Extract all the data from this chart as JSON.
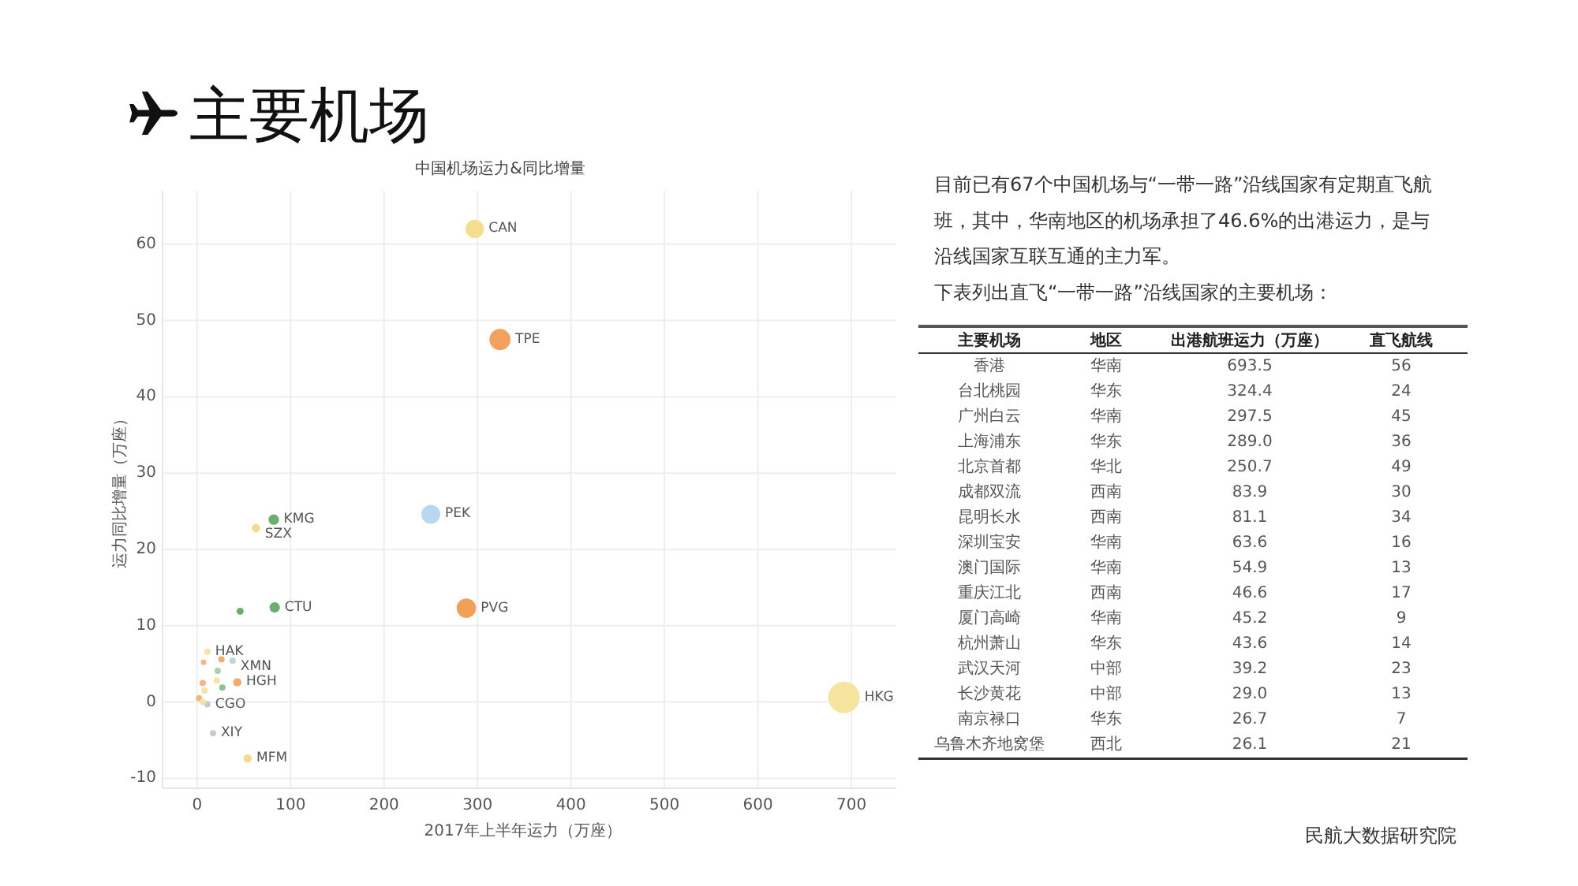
{
  "chart_data": [
    {
      "type": "other",
      "title": "主要机场"
    },
    {
      "type": "bubble",
      "title": "中国机场运力&同比增量",
      "xlabel": "2017年上半年运力（万座）",
      "ylabel": "运力同比增量（万座）",
      "xlim": [
        -37,
        748
      ],
      "ylim": [
        -11.3,
        67
      ],
      "xticks": [
        0,
        100,
        200,
        300,
        400,
        500,
        600,
        700
      ],
      "yticks": [
        -10,
        0,
        10,
        20,
        30,
        40,
        50,
        60
      ],
      "grid": true,
      "x": [
        297,
        324,
        250,
        288,
        692,
        82,
        63,
        83,
        46,
        43,
        54,
        17,
        11,
        11,
        38,
        26,
        22,
        21,
        27,
        6,
        8,
        2,
        6,
        7
      ],
      "values": [
        62,
        47.5,
        24.6,
        12.3,
        0.6,
        23.9,
        22.8,
        12.4,
        11.9,
        2.6,
        -7.4,
        -4.1,
        -0.3,
        6.6,
        5.4,
        5.6,
        4.1,
        2.8,
        1.9,
        2.5,
        1.5,
        0.5,
        0,
        5.2
      ],
      "sizes": [
        0.34,
        0.45,
        0.36,
        0.38,
        1,
        0.11,
        0.07,
        0.11,
        0.05,
        0.07,
        0.07,
        0.04,
        0.04,
        0.04,
        0.04,
        0.04,
        0.04,
        0.04,
        0.04,
        0.04,
        0.04,
        0.04,
        0.04,
        0.03
      ],
      "colors": [
        "#f6dc8e",
        "#f2a25e",
        "#b9d7ef",
        "#f1a05a",
        "#f6e39e",
        "#6bae70",
        "#f3dc8c",
        "#6bae70",
        "#6bae70",
        "#efac6a",
        "#f4dc8e",
        "#c5cbcf",
        "#c5cbcf",
        "#f5e2a4",
        "#bfd3d8",
        "#efae70",
        "#a9d1a9",
        "#f5e2a4",
        "#8fc292",
        "#efb880",
        "#f5e2a4",
        "#efb880",
        "#f5e2a4",
        "#efb880"
      ],
      "annotations": [
        {
          "text": "CAN",
          "x": 297,
          "y": 62
        },
        {
          "text": "TPE",
          "x": 324,
          "y": 47.5
        },
        {
          "text": "PEK",
          "x": 250,
          "y": 24.6
        },
        {
          "text": "PVG",
          "x": 288,
          "y": 12.3
        },
        {
          "text": "HKG",
          "x": 692,
          "y": 0.6
        },
        {
          "text": "KMG",
          "x": 82,
          "y": 23.9
        },
        {
          "text": "SZX",
          "x": 63,
          "y": 22.8
        },
        {
          "text": "CTU",
          "x": 83,
          "y": 12.4
        },
        {
          "text": "HGH",
          "x": 43,
          "y": 2.6
        },
        {
          "text": "MFM",
          "x": 54,
          "y": -7.4
        },
        {
          "text": "XIY",
          "x": 17,
          "y": -4.1
        },
        {
          "text": "CGO",
          "x": 11,
          "y": -0.3
        },
        {
          "text": "HAK",
          "x": 11,
          "y": 6.6
        },
        {
          "text": "XMN",
          "x": 38,
          "y": 5.4
        }
      ]
    },
    {
      "type": "other",
      "annotations": [
        "目前已有67个中国机场与“一带一路”沿线国家有定期直飞航班，其中，华南地区的机场承担了46.6%的出港运力，是与沿线国家互联互通的主力军。",
        "下表列出直飞“一带一路”沿线国家的主要机场：",
        "民航大数据研究院"
      ],
      "ylabel": "主要机场",
      "categories": [
        "地区",
        "出港航班运力（万座）",
        "直飞航线"
      ],
      "y_categories": [
        "香港",
        "台北桃园",
        "广州白云",
        "上海浦东",
        "北京首都",
        "成都双流",
        "昆明长水",
        "深圳宝安",
        "澳门国际",
        "重庆江北",
        "厦门高崎",
        "杭州萧山",
        "武汉天河",
        "长沙黄花",
        "南京禄口",
        "乌鲁木齐地窝堡"
      ],
      "cell_labels": [
        [
          "华南",
          "693.5",
          "56"
        ],
        [
          "华东",
          "324.4",
          "24"
        ],
        [
          "华南",
          "297.5",
          "45"
        ],
        [
          "华东",
          "289.0",
          "36"
        ],
        [
          "华北",
          "250.7",
          "49"
        ],
        [
          "西南",
          "83.9",
          "30"
        ],
        [
          "西南",
          "81.1",
          "34"
        ],
        [
          "华南",
          "63.6",
          "16"
        ],
        [
          "华南",
          "54.9",
          "13"
        ],
        [
          "西南",
          "46.6",
          "17"
        ],
        [
          "华南",
          "45.2",
          "9"
        ],
        [
          "华东",
          "43.6",
          "14"
        ],
        [
          "中部",
          "39.2",
          "23"
        ],
        [
          "中部",
          "29.0",
          "13"
        ],
        [
          "华东",
          "26.7",
          "7"
        ],
        [
          "西北",
          "26.1",
          "21"
        ]
      ]
    }
  ]
}
